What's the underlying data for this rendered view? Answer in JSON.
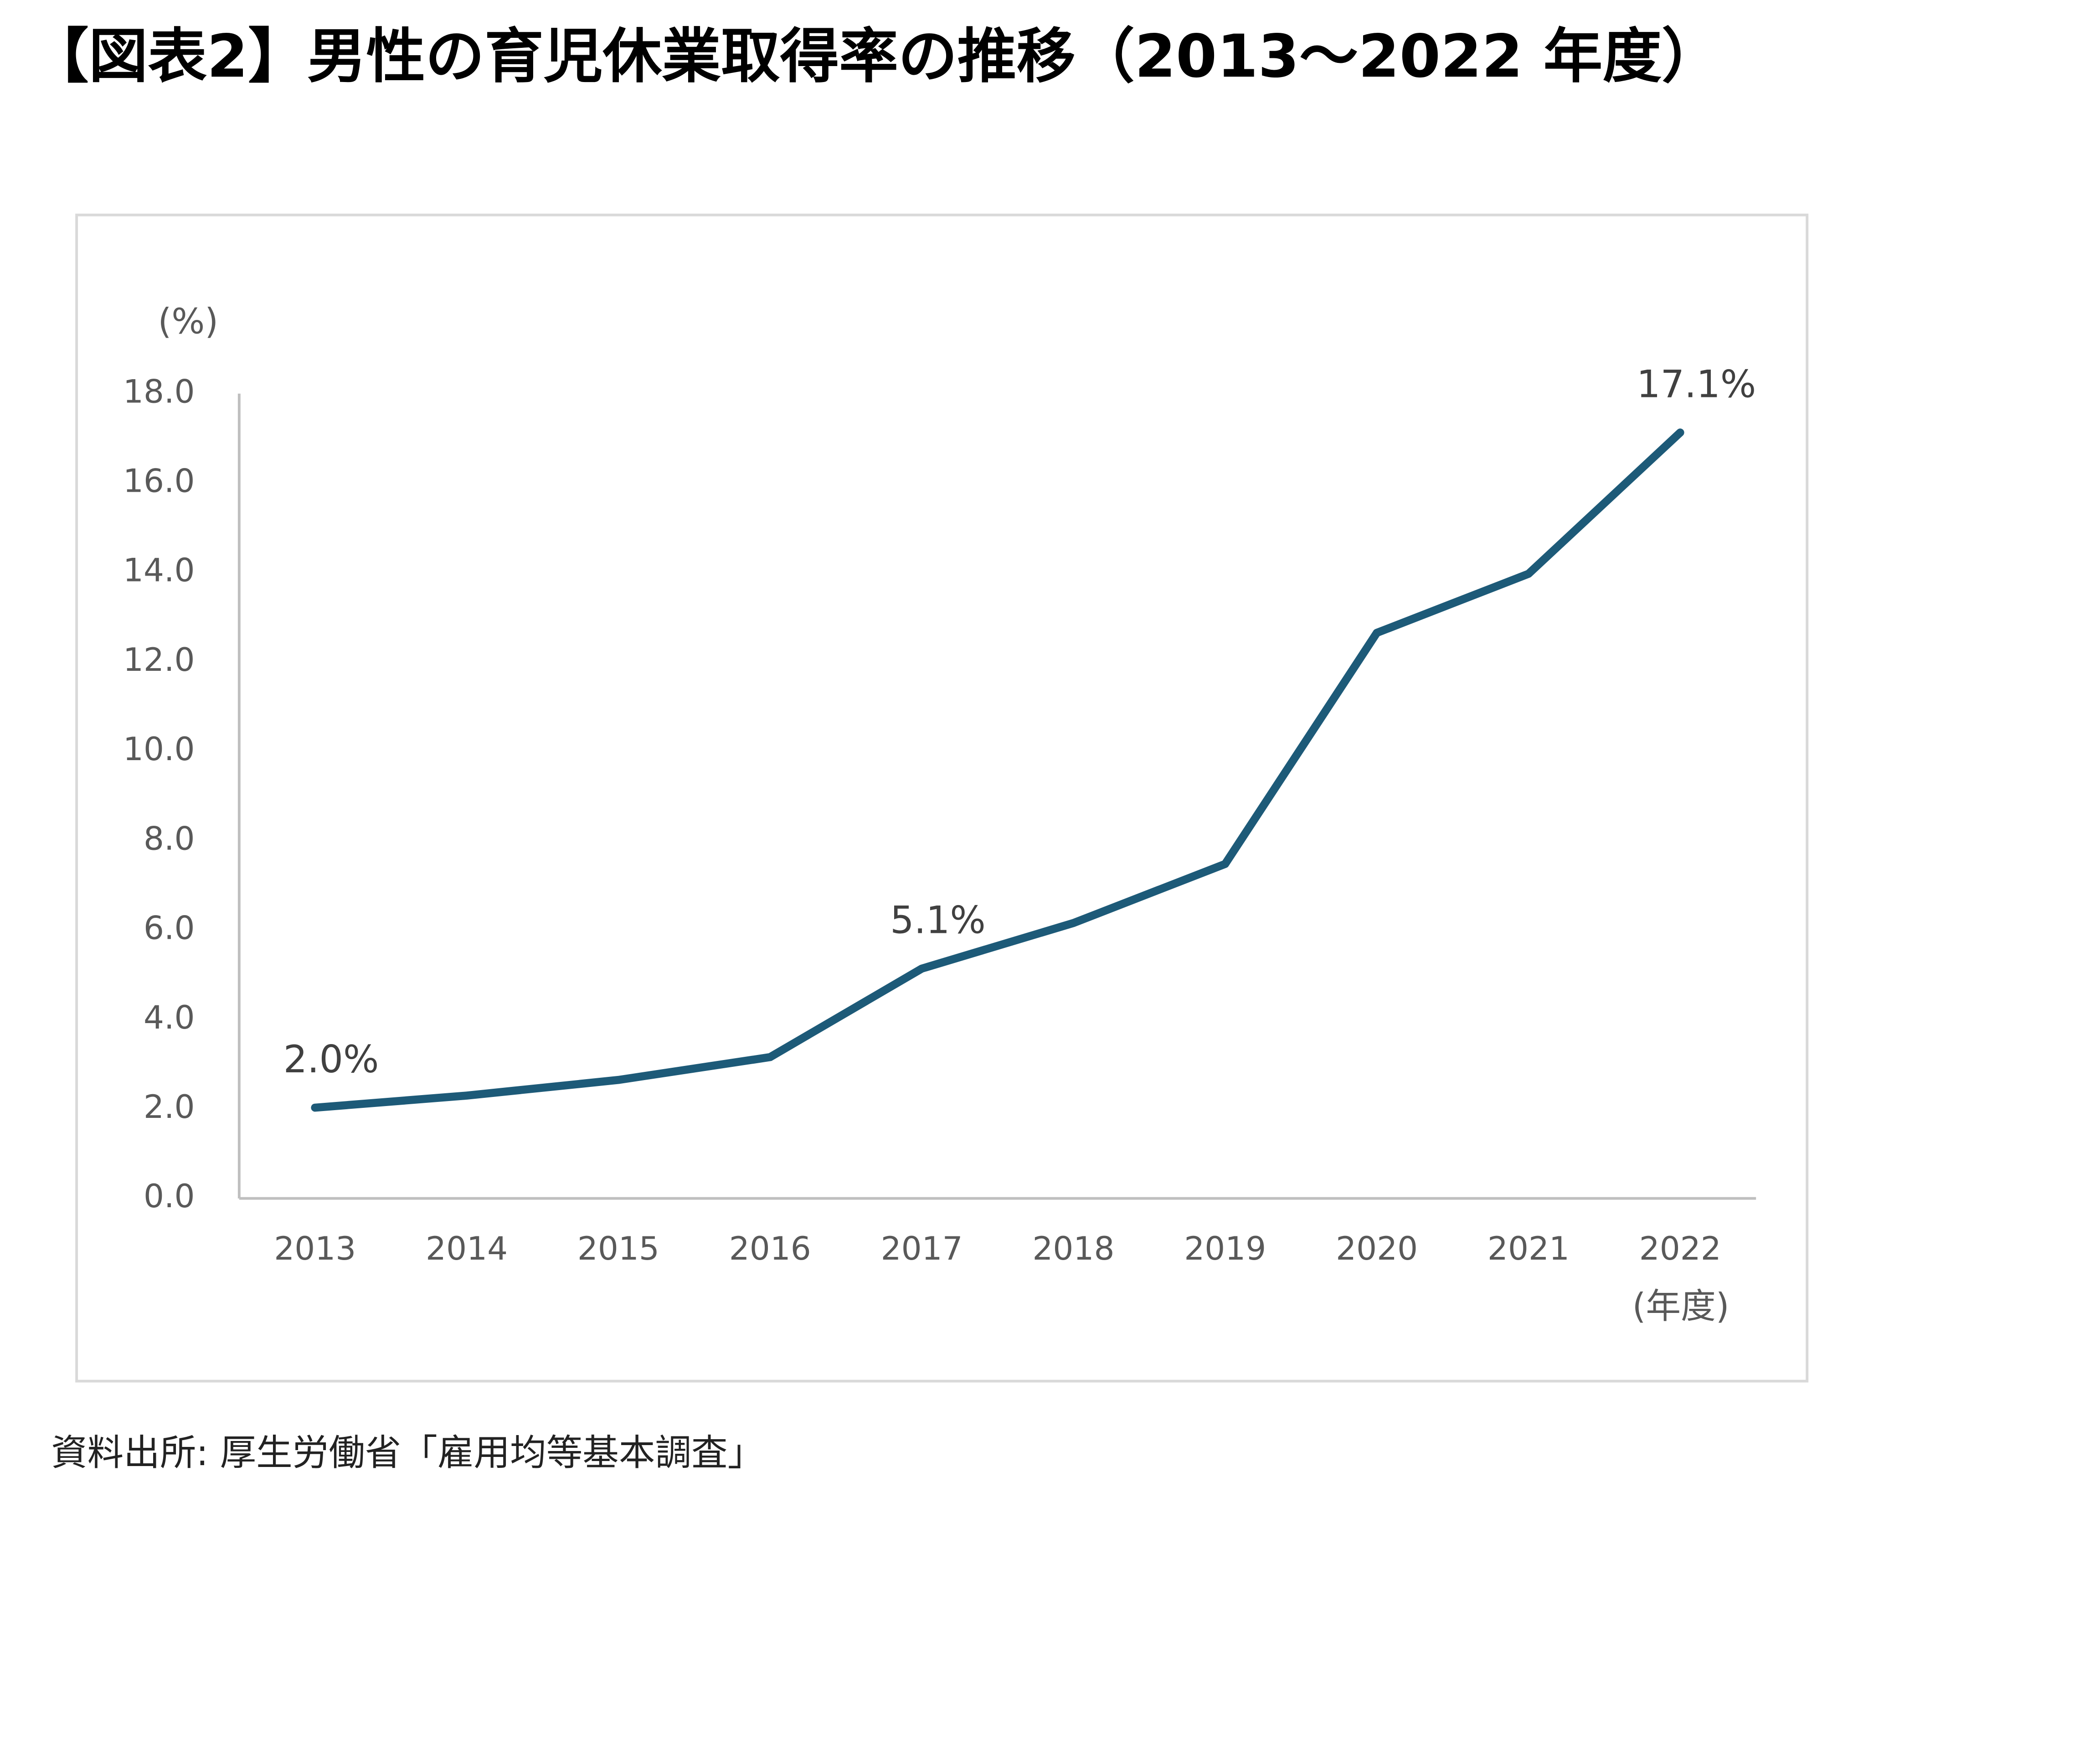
{
  "chart_data": {
    "type": "line",
    "title": "【図表2】男性の育児休業取得率の推移（2013～2022 年度）",
    "y_unit_label": "(%)",
    "x_unit_label": "(年度)",
    "source": "資料出所: 厚生労働省「雇用均等基本調査」",
    "categories": [
      "2013",
      "2014",
      "2015",
      "2016",
      "2017",
      "2018",
      "2019",
      "2020",
      "2021",
      "2022"
    ],
    "series": [
      {
        "color": "#1d5a78",
        "values": [
          2.03,
          2.3,
          2.65,
          3.16,
          5.14,
          6.16,
          7.48,
          12.65,
          13.97,
          17.13
        ],
        "value_labels": [
          "2.0%",
          null,
          null,
          null,
          "5.1%",
          null,
          null,
          null,
          null,
          "17.1%"
        ]
      }
    ],
    "ylim": [
      0,
      18
    ],
    "yticks": [
      {
        "value": 0,
        "label": "0.0"
      },
      {
        "value": 2,
        "label": "2.0"
      },
      {
        "value": 4,
        "label": "4.0"
      },
      {
        "value": 6,
        "label": "6.0"
      },
      {
        "value": 8,
        "label": "8.0"
      },
      {
        "value": 10,
        "label": "10.0"
      },
      {
        "value": 12,
        "label": "12.0"
      },
      {
        "value": 14,
        "label": "14.0"
      },
      {
        "value": 16,
        "label": "16.0"
      },
      {
        "value": 18,
        "label": "18.0"
      }
    ],
    "grid": false
  }
}
